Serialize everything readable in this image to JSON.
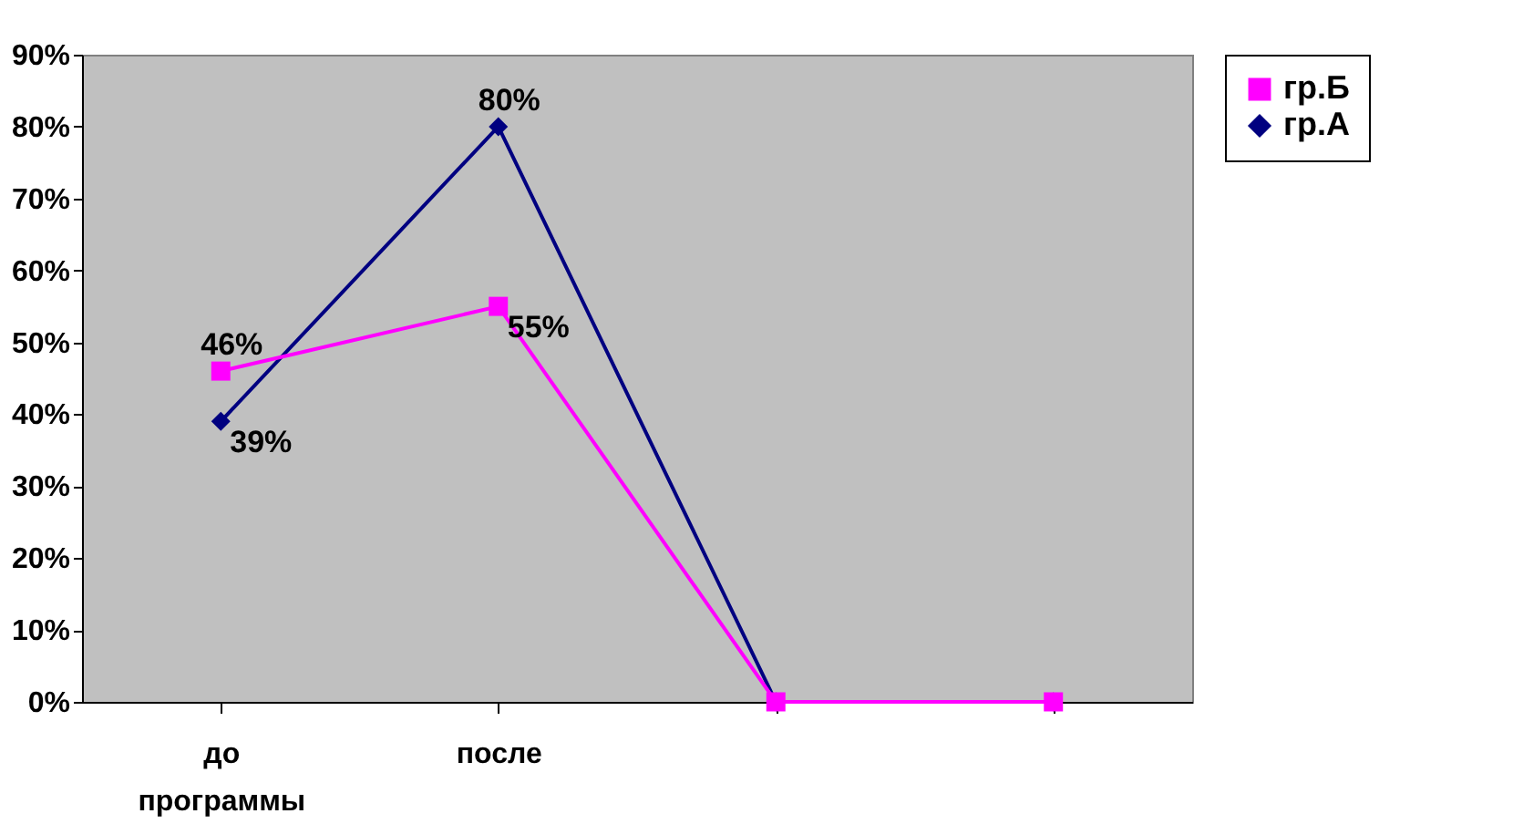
{
  "chart_data": {
    "type": "line",
    "categories": [
      "до программы",
      "после",
      null,
      null
    ],
    "series": [
      {
        "name": "гр.Б",
        "color": "#ff00ff",
        "marker": "square",
        "values": [
          46,
          55,
          0,
          0
        ],
        "value_labels": [
          "46%",
          "55%",
          null,
          null
        ]
      },
      {
        "name": "гр.А",
        "color": "#000080",
        "marker": "diamond",
        "values": [
          39,
          80,
          0,
          0
        ],
        "value_labels": [
          "39%",
          "80%",
          null,
          null
        ]
      }
    ],
    "ylim": [
      0,
      90
    ],
    "yticks": [
      {
        "value": 0,
        "label": "0%"
      },
      {
        "value": 10,
        "label": "10%"
      },
      {
        "value": 20,
        "label": "20%"
      },
      {
        "value": 30,
        "label": "30%"
      },
      {
        "value": 40,
        "label": "40%"
      },
      {
        "value": 50,
        "label": "50%"
      },
      {
        "value": 60,
        "label": "60%"
      },
      {
        "value": 70,
        "label": "70%"
      },
      {
        "value": 80,
        "label": "80%"
      },
      {
        "value": 90,
        "label": "90%"
      }
    ],
    "grid": false,
    "legend": "right",
    "line_style": "solid"
  }
}
